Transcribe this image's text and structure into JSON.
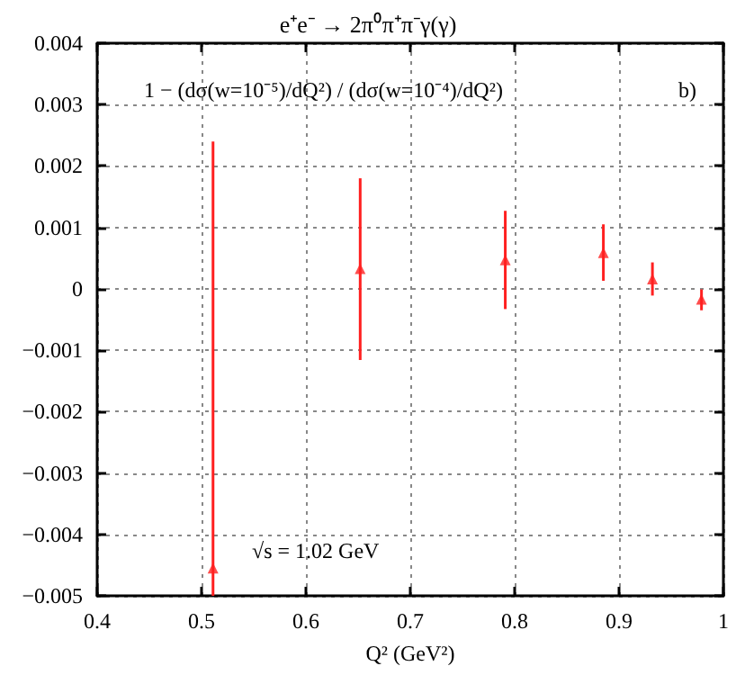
{
  "chart_data": {
    "type": "scatter",
    "title": "e⁺e⁻ → 2π⁰π⁺π⁻γ(γ)",
    "xlabel": "Q² (GeV²)",
    "annotations": [
      "1 − (dσ(w=10⁻⁵)/dQ²) / (dσ(w=10⁻⁴)/dQ²)",
      "b)",
      "√s = 1.02 GeV"
    ],
    "x": [
      0.511,
      0.652,
      0.791,
      0.885,
      0.932,
      0.979
    ],
    "series": [
      {
        "color": "#ff2020",
        "values": [
          -0.00455,
          0.00033,
          0.00047,
          0.00059,
          0.00016,
          -0.00017
        ],
        "errors": [
          [
            -0.005,
            0.0024
          ],
          [
            -0.00116,
            0.0018
          ],
          [
            -0.00033,
            0.00127
          ],
          [
            0.00013,
            0.00105
          ],
          [
            -0.00011,
            0.00043
          ],
          [
            -0.00035,
            -1e-05
          ]
        ]
      }
    ],
    "xlim": [
      0.4,
      1
    ],
    "xticks": [
      0.4,
      0.5,
      0.6,
      0.7,
      0.8,
      0.9,
      1
    ],
    "ylim": [
      -0.005,
      0.004
    ],
    "yticks": [
      -0.005,
      -0.004,
      -0.003,
      -0.002,
      -0.001,
      0,
      0.001,
      0.002,
      0.003,
      0.004
    ],
    "grid": true,
    "marker": "triangle"
  }
}
